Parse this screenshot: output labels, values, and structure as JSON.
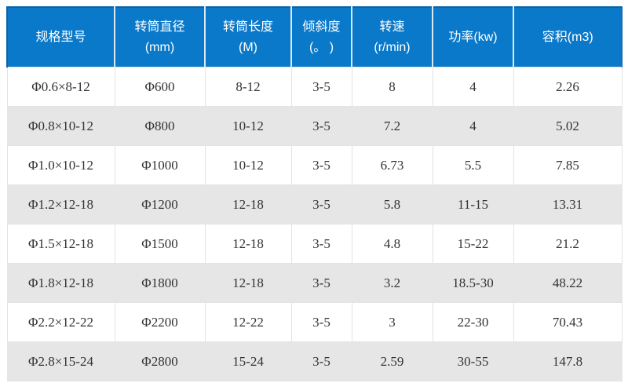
{
  "chart_data": {
    "type": "table",
    "title": "",
    "columns": [
      "规格型号",
      "转筒直径\n(mm)",
      "转筒长度\n(M)",
      "倾斜度\n(。 )",
      "转速\n(r/min)",
      "功率(kw)",
      "容积(m3)"
    ],
    "rows": [
      [
        "Φ0.6×8-12",
        "Φ600",
        "8-12",
        "3-5",
        "8",
        "4",
        "2.26"
      ],
      [
        "Φ0.8×10-12",
        "Φ800",
        "10-12",
        "3-5",
        "7.2",
        "4",
        "5.02"
      ],
      [
        "Φ1.0×10-12",
        "Φ1000",
        "10-12",
        "3-5",
        "6.73",
        "5.5",
        "7.85"
      ],
      [
        "Φ1.2×12-18",
        "Φ1200",
        "12-18",
        "3-5",
        "5.8",
        "11-15",
        "13.31"
      ],
      [
        "Φ1.5×12-18",
        "Φ1500",
        "12-18",
        "3-5",
        "4.8",
        "15-22",
        "21.2"
      ],
      [
        "Φ1.8×12-18",
        "Φ1800",
        "12-18",
        "3-5",
        "3.2",
        "18.5-30",
        "48.22"
      ],
      [
        "Φ2.2×12-22",
        "Φ2200",
        "12-22",
        "3-5",
        "3",
        "22-30",
        "70.43"
      ],
      [
        "Φ2.8×15-24",
        "Φ2800",
        "15-24",
        "3-5",
        "2.59",
        "30-55",
        "147.8"
      ]
    ]
  },
  "colors": {
    "header_bg": "#0b79ca",
    "header_text": "#ffffff",
    "header_separator": "#d8e9f7",
    "header_edge": "#0d62a2",
    "row_alt_bg": "#e6e6e6",
    "body_text": "#333333",
    "body_border": "#e3e3e3"
  }
}
